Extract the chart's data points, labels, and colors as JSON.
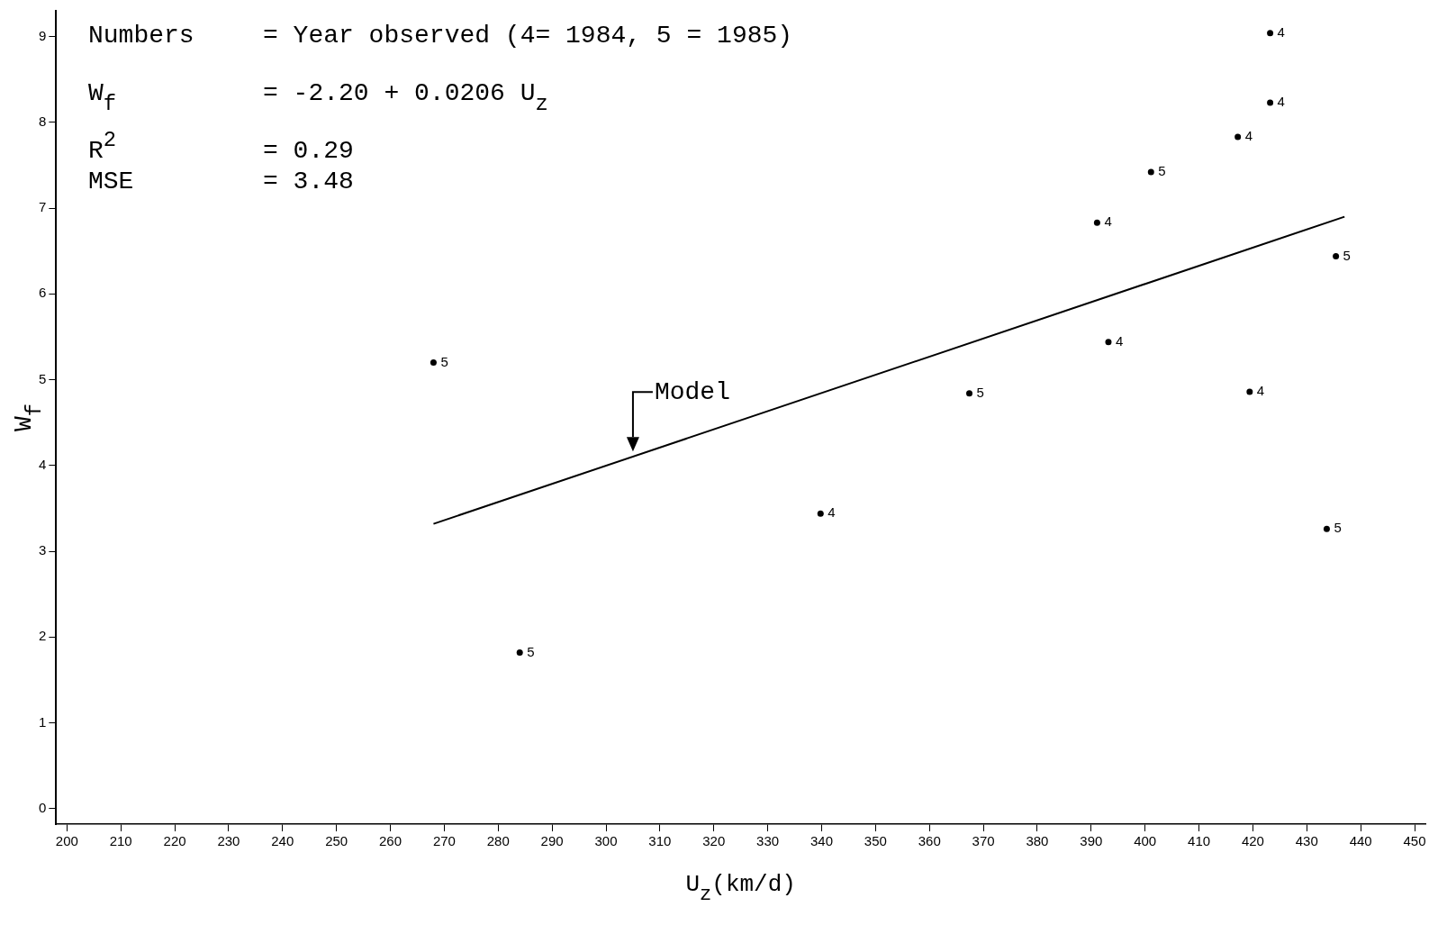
{
  "chart_data": {
    "type": "scatter",
    "xlabel": "U$_{z}$(km/d)",
    "ylabel": "W$_{f}$",
    "annotations": [
      "Numbers = Year observed (4= 1984, 5 = 1985)",
      "W$_{f}$ = -2.20 + 0.0206 U$_{z}$",
      "R$^{2}$ = 0.29",
      "MSE = 3.48",
      {
        "text": "Model",
        "x": 305,
        "y": 4.1
      }
    ],
    "series": [
      {
        "name": "4",
        "type": "scatter",
        "color": "#000000",
        "x": [
          423.2,
          423.2,
          417.2,
          391.1,
          393.2,
          419.4,
          339.8
        ],
        "values": [
          9.04,
          8.23,
          7.83,
          6.83,
          5.44,
          4.86,
          3.44
        ]
      },
      {
        "name": "5",
        "type": "scatter",
        "color": "#000000",
        "x": [
          401.1,
          435.4,
          268.0,
          367.4,
          433.7,
          284.0
        ],
        "values": [
          7.42,
          6.44,
          5.2,
          4.84,
          3.26,
          1.82
        ]
      },
      {
        "type": "line",
        "color": "#000000",
        "x": [
          268,
          437
        ],
        "values": [
          3.32,
          6.9
        ]
      }
    ],
    "xlim": [
      198,
      452
    ],
    "xticks": [
      200,
      210,
      220,
      230,
      240,
      250,
      260,
      270,
      280,
      290,
      300,
      310,
      320,
      330,
      340,
      350,
      360,
      370,
      380,
      390,
      400,
      410,
      420,
      430,
      440,
      450
    ],
    "ylim": [
      -0.18,
      9.3
    ],
    "yticks": [
      0,
      1,
      2,
      3,
      4,
      5,
      6,
      7,
      8,
      9
    ],
    "grid": false,
    "legend": false
  }
}
